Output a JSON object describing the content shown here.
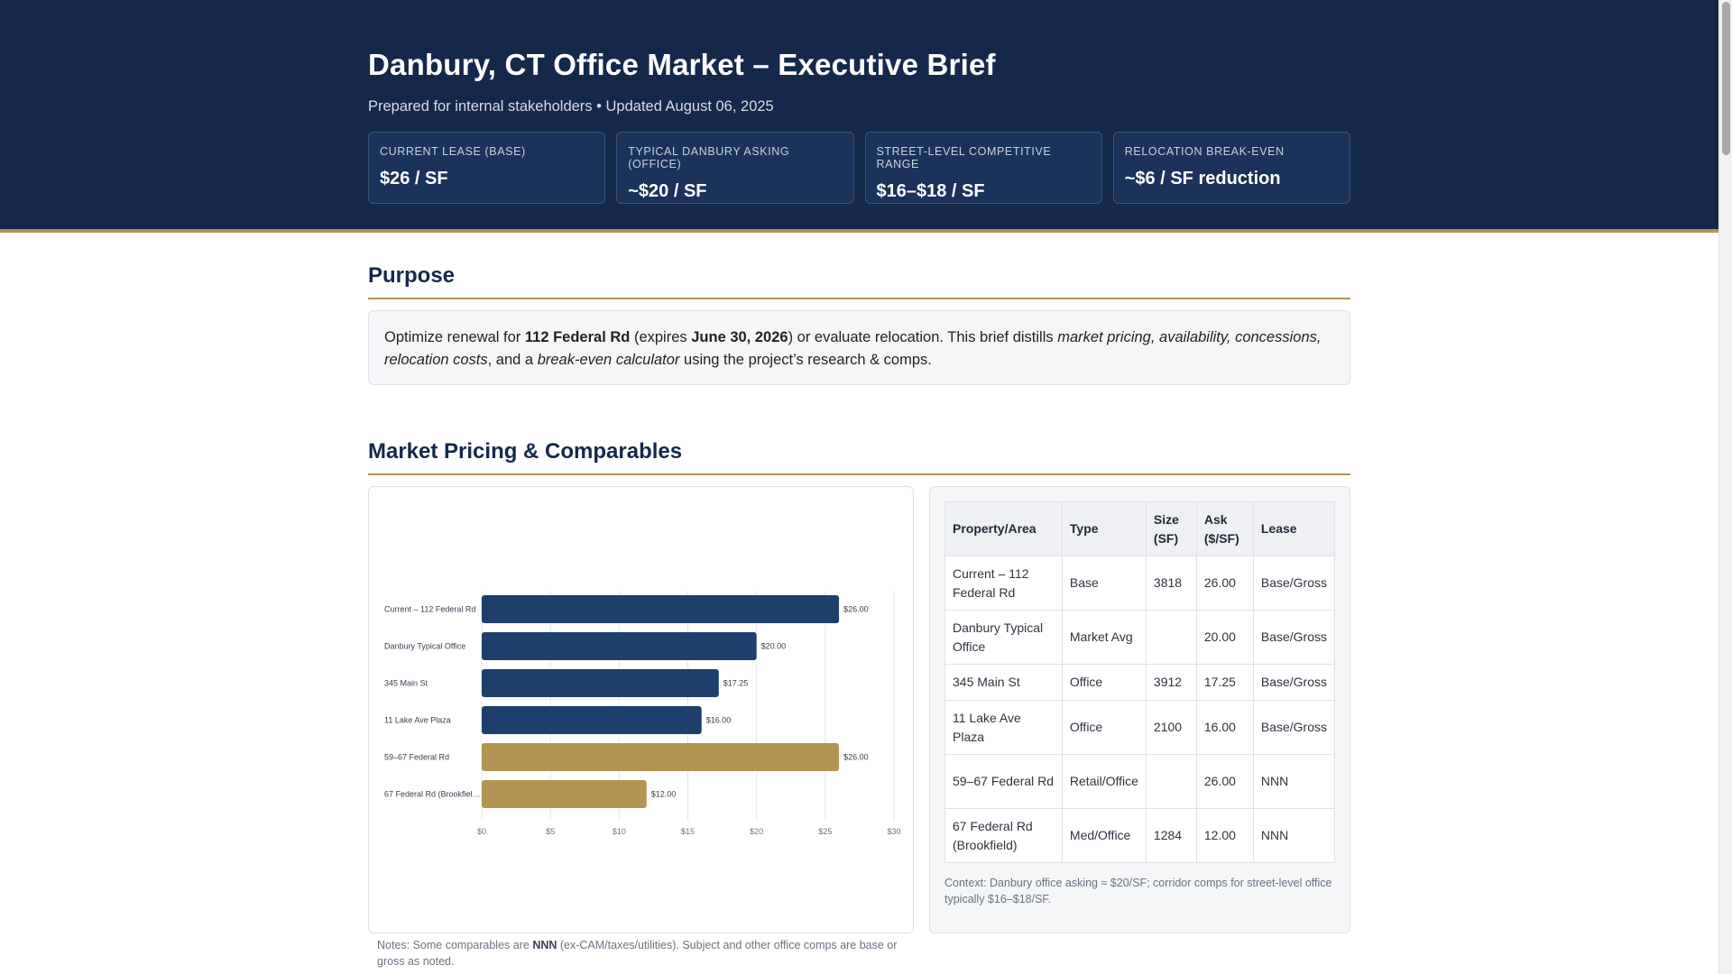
{
  "header": {
    "title": "Danbury, CT Office Market – Executive Brief",
    "subtitle": "Prepared for internal stakeholders • Updated August 06, 2025",
    "kpis": [
      {
        "label": "CURRENT LEASE (BASE)",
        "value": "$26 / SF"
      },
      {
        "label": "TYPICAL DANBURY ASKING (OFFICE)",
        "value": "~$20 / SF"
      },
      {
        "label": "STREET-LEVEL COMPETITIVE RANGE",
        "value": "$16–$18 / SF"
      },
      {
        "label": "RELOCATION BREAK-EVEN",
        "value": "~$6 / SF reduction"
      }
    ]
  },
  "purpose": {
    "title": "Purpose",
    "t1": "Optimize renewal for ",
    "property": "112 Federal Rd",
    "t2": " (expires ",
    "expiry": "June 30, 2026",
    "t3": ") or evaluate relocation. This brief distills ",
    "em1": "market pricing, availability, concessions, relocation costs",
    "t4": ", and a ",
    "em2": "break-even calculator",
    "t5": " using the project’s research & comps."
  },
  "market": {
    "title": "Market Pricing & Comparables",
    "note_prefix": "Notes: Some comparables are ",
    "note_bold": "NNN",
    "note_suffix": " (ex-CAM/taxes/utilities). Subject and other office comps are base or gross as noted.",
    "table": {
      "headers": [
        "Property/Area",
        "Type",
        "Size (SF)",
        "Ask ($/SF)",
        "Lease"
      ],
      "rows": [
        [
          "Current – 112 Federal Rd",
          "Base",
          "3818",
          "26.00",
          "Base/Gross"
        ],
        [
          "Danbury Typical Office",
          "Market Avg",
          "",
          "20.00",
          "Base/Gross"
        ],
        [
          "345 Main St",
          "Office",
          "3912",
          "17.25",
          "Base/Gross"
        ],
        [
          "11 Lake Ave Plaza",
          "Office",
          "2100",
          "16.00",
          "Base/Gross"
        ],
        [
          "59–67 Federal Rd",
          "Retail/Office",
          "",
          "26.00",
          "NNN"
        ],
        [
          "67 Federal Rd (Brookfield)",
          "Med/Office",
          "1284",
          "12.00",
          "NNN"
        ]
      ]
    },
    "context": "Context: Danbury office asking ≈ $20/SF; corridor comps for street-level office typically $16–$18/SF."
  },
  "chart_data": {
    "type": "bar",
    "orientation": "horizontal",
    "categories": [
      "Current – 112 Federal Rd",
      "Danbury Typical Office",
      "345 Main St",
      "11 Lake Ave Plaza",
      "59–67 Federal Rd",
      "67 Federal Rd (Brookfield)"
    ],
    "category_display": [
      "Current – 112 Federal Rd",
      "Danbury Typical Office",
      "345 Main St",
      "11 Lake Ave Plaza",
      "59–67 Federal Rd",
      "67 Federal Rd (Brookfiel…"
    ],
    "values": [
      26,
      20,
      17.25,
      16,
      26,
      12
    ],
    "value_labels": [
      "$26.00",
      "$20.00",
      "$17.25",
      "$16.00",
      "$26.00",
      "$12.00"
    ],
    "bar_colors": [
      "#1c3f6b",
      "#1c3f6b",
      "#1c3f6b",
      "#1c3f6b",
      "#b39452",
      "#b39452"
    ],
    "xlim": [
      0,
      30
    ],
    "x_ticks": [
      0,
      5,
      10,
      15,
      20,
      25,
      30
    ],
    "x_tick_labels": [
      "$0",
      "$5",
      "$10",
      "$15",
      "$20",
      "$25",
      "$30"
    ],
    "grid": true,
    "title": "",
    "xlabel": "",
    "ylabel": ""
  }
}
